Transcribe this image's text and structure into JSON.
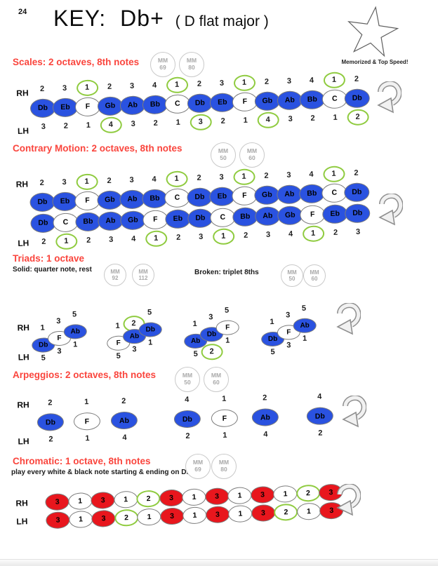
{
  "header": {
    "page_number": "24",
    "title_key": "KEY:",
    "title_name": "Db+",
    "subtitle": "( D flat major )",
    "star_caption": "Memorized & Top Speed!"
  },
  "labels": {
    "rh": "RH",
    "lh": "LH",
    "mm": "MM"
  },
  "colors": {
    "blue": "#2a52e0",
    "red": "#e8161d",
    "green": "#8fcb3f",
    "heading": "#fa453d"
  },
  "white_keys": [
    "F",
    "C"
  ],
  "scales": {
    "heading": "Scales: 2 octaves, 8th notes",
    "mm": [
      "69",
      "80"
    ],
    "rh_fingers": [
      "2",
      "3",
      "1",
      "2",
      "3",
      "4",
      "1",
      "2",
      "3",
      "1",
      "2",
      "3",
      "4",
      "1",
      "2"
    ],
    "rh_circled": [
      2,
      6,
      9,
      13
    ],
    "notes": [
      "Db",
      "Eb",
      "F",
      "Gb",
      "Ab",
      "Bb",
      "C",
      "Db",
      "Eb",
      "F",
      "Gb",
      "Ab",
      "Bb",
      "C",
      "Db"
    ],
    "lh_fingers": [
      "3",
      "2",
      "1",
      "4",
      "3",
      "2",
      "1",
      "3",
      "2",
      "1",
      "4",
      "3",
      "2",
      "1",
      "2"
    ],
    "lh_circled": [
      3,
      7,
      10,
      14
    ]
  },
  "contrary": {
    "heading": "Contrary Motion: 2 octaves, 8th notes",
    "mm": [
      "50",
      "60"
    ],
    "rh_fingers": [
      "2",
      "3",
      "1",
      "2",
      "3",
      "4",
      "1",
      "2",
      "3",
      "1",
      "2",
      "3",
      "4",
      "1",
      "2"
    ],
    "rh_circled": [
      2,
      6,
      9,
      13
    ],
    "rh_notes": [
      "Db",
      "Eb",
      "F",
      "Gb",
      "Ab",
      "Bb",
      "C",
      "Db",
      "Eb",
      "F",
      "Gb",
      "Ab",
      "Bb",
      "C",
      "Db"
    ],
    "lh_notes": [
      "Db",
      "C",
      "Bb",
      "Ab",
      "Gb",
      "F",
      "Eb",
      "Db",
      "C",
      "Bb",
      "Ab",
      "Gb",
      "F",
      "Eb",
      "Db"
    ],
    "lh_fingers": [
      "2",
      "1",
      "2",
      "3",
      "4",
      "1",
      "2",
      "3",
      "1",
      "2",
      "3",
      "4",
      "1",
      "2",
      "3"
    ],
    "lh_circled": [
      1,
      5,
      8,
      12
    ]
  },
  "triads": {
    "heading": "Triads: 1 octave",
    "solid_label": "Solid: quarter note, rest",
    "solid_mm": [
      "92",
      "112"
    ],
    "broken_label": "Broken: triplet 8ths",
    "broken_mm": [
      "50",
      "60"
    ],
    "groups": [
      {
        "notes": [
          "Db",
          "F",
          "Ab"
        ],
        "rh": [
          "1",
          "3",
          "5"
        ],
        "rh_circled": [],
        "lh": [
          "5",
          "3",
          "1"
        ],
        "lh_circled": []
      },
      {
        "notes": [
          "F",
          "Ab",
          "Db"
        ],
        "rh": [
          "1",
          "2",
          "5"
        ],
        "rh_circled": [
          1
        ],
        "lh": [
          "5",
          "3",
          "1"
        ],
        "lh_circled": []
      },
      {
        "notes": [
          "Ab",
          "Db",
          "F"
        ],
        "rh": [
          "1",
          "3",
          "5"
        ],
        "rh_circled": [],
        "lh": [
          "5",
          "2",
          "1"
        ],
        "lh_circled": [
          1
        ]
      },
      {
        "notes": [
          "Db",
          "F",
          "Ab"
        ],
        "rh": [
          "1",
          "3",
          "5"
        ],
        "rh_circled": [],
        "lh": [
          "5",
          "3",
          "1"
        ],
        "lh_circled": []
      }
    ]
  },
  "arpeggios": {
    "heading": "Arpeggios: 2 octaves, 8th notes",
    "mm": [
      "50",
      "60"
    ],
    "rh_fingers": [
      "2",
      "1",
      "2",
      "4",
      "1",
      "2",
      "4"
    ],
    "notes": [
      "Db",
      "F",
      "Ab",
      "Db",
      "F",
      "Ab",
      "Db"
    ],
    "lh_fingers": [
      "2",
      "1",
      "4",
      "2",
      "1",
      "4",
      "2"
    ]
  },
  "chromatic": {
    "heading": "Chromatic: 1 octave, 8th notes",
    "sub": "play every white & black note starting & ending on Db",
    "mm": [
      "69",
      "80"
    ],
    "rh": [
      "3",
      "1",
      "3",
      "1",
      "2",
      "3",
      "1",
      "3",
      "1",
      "3",
      "1",
      "2",
      "3"
    ],
    "rh_red": [
      0,
      2,
      5,
      7,
      9,
      12
    ],
    "rh_green": [
      4,
      11
    ],
    "lh": [
      "3",
      "1",
      "3",
      "2",
      "1",
      "3",
      "1",
      "3",
      "1",
      "3",
      "2",
      "1",
      "3"
    ],
    "lh_red": [
      0,
      2,
      5,
      7,
      9,
      12
    ],
    "lh_green": [
      3,
      10
    ]
  }
}
